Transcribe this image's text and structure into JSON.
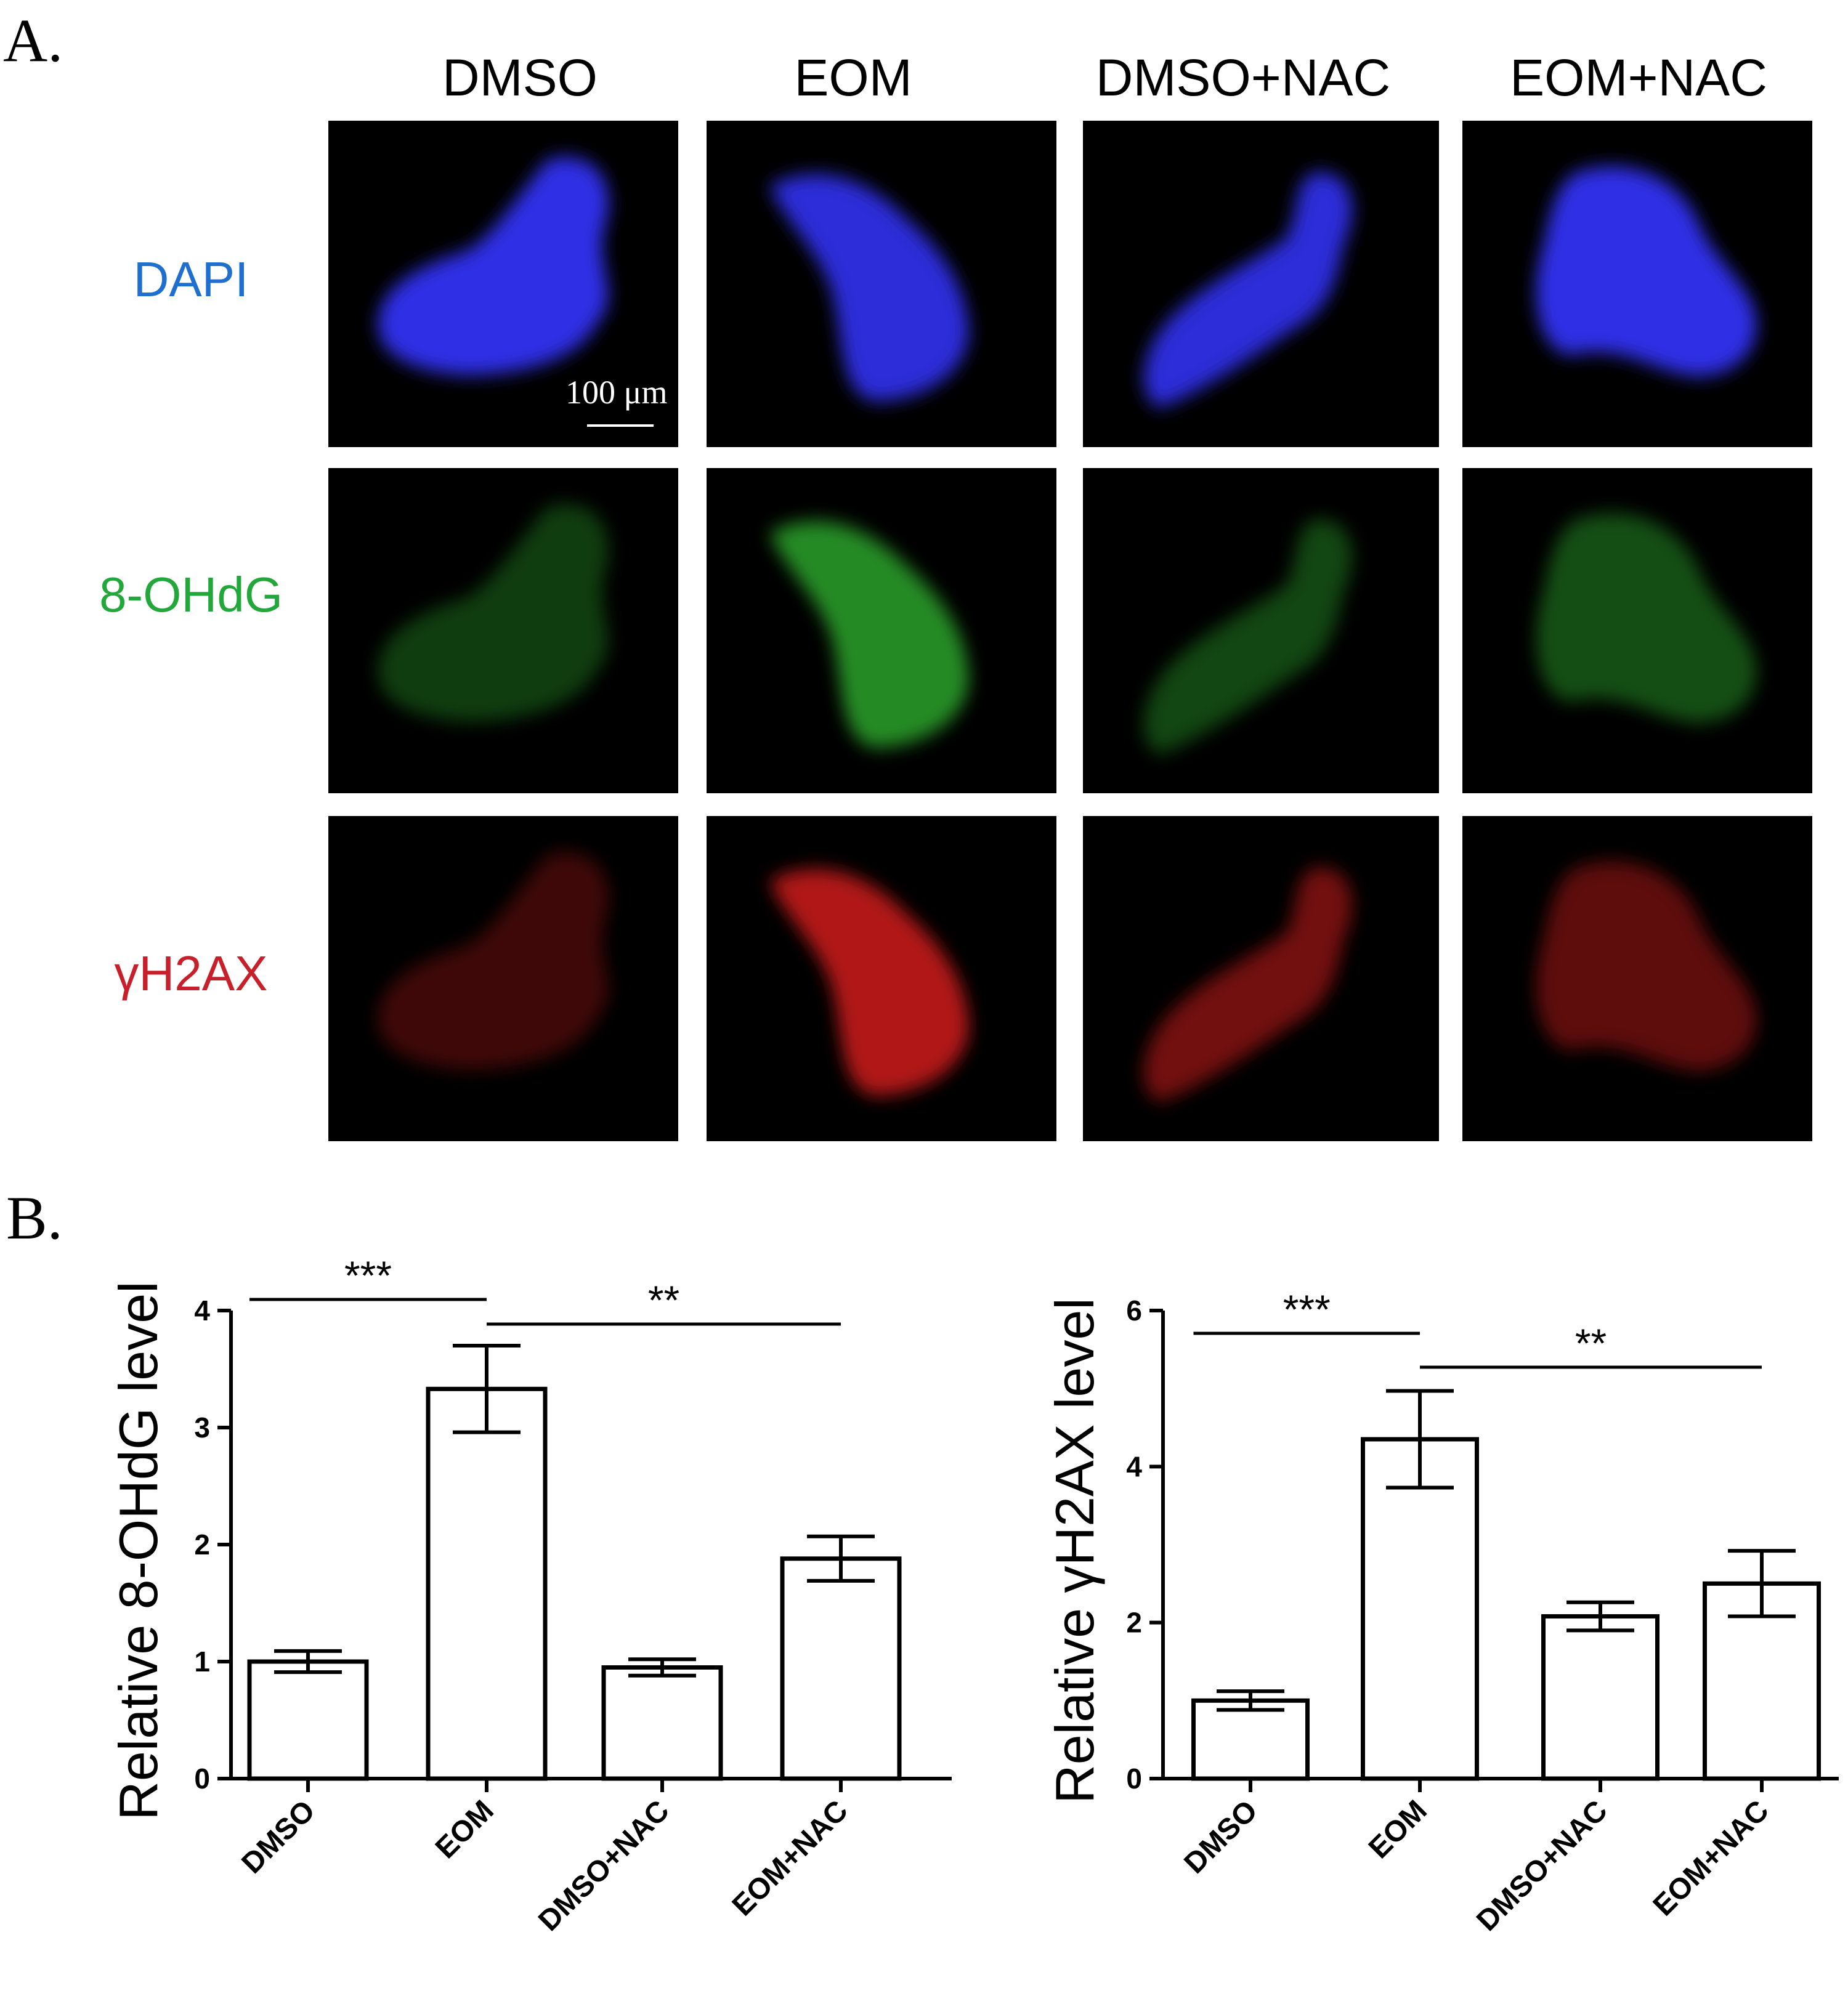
{
  "panel_a": {
    "letter": "A.",
    "columns": [
      "DMSO",
      "EOM",
      "DMSO+NAC",
      "EOM+NAC"
    ],
    "rows": [
      {
        "label": "DAPI",
        "color": "#1f6fd0",
        "stain_color": "#3434ff"
      },
      {
        "label": "8-OHdG",
        "color": "#22a83a",
        "stain_color": "#2fae2f"
      },
      {
        "label": "γH2AX",
        "color": "#c8202a",
        "stain_color": "#d01c1c"
      }
    ],
    "scale_bar": "100 μm",
    "intensity": [
      [
        0.9,
        0.85,
        0.85,
        0.9
      ],
      [
        0.35,
        0.8,
        0.4,
        0.45
      ],
      [
        0.3,
        0.85,
        0.55,
        0.45
      ]
    ]
  },
  "panel_b": {
    "letter": "B."
  },
  "chart_data": [
    {
      "type": "bar",
      "categories": [
        "DMSO",
        "EOM",
        "DMSO+NAC",
        "EOM+NAC"
      ],
      "values": [
        1.0,
        3.33,
        0.95,
        1.88
      ],
      "errors": [
        0.09,
        0.37,
        0.07,
        0.19
      ],
      "ylabel": "Relative 8-OHdG  level",
      "ylim": [
        0,
        4
      ],
      "yticks": [
        "0",
        "1",
        "2",
        "3",
        "4"
      ],
      "significance": [
        {
          "from": 0,
          "to": 1,
          "label": "***"
        },
        {
          "from": 1,
          "to": 3,
          "label": "**"
        }
      ]
    },
    {
      "type": "bar",
      "categories": [
        "DMSO",
        "EOM",
        "DMSO+NAC",
        "EOM+NAC"
      ],
      "values": [
        1.0,
        4.35,
        2.08,
        2.5
      ],
      "errors": [
        0.12,
        0.62,
        0.18,
        0.42
      ],
      "ylabel": "Relative  γH2AX  level",
      "ylim": [
        0,
        6
      ],
      "yticks": [
        "0",
        "2",
        "4",
        "6"
      ],
      "significance": [
        {
          "from": 0,
          "to": 1,
          "label": "***"
        },
        {
          "from": 1,
          "to": 3,
          "label": "**"
        }
      ]
    }
  ]
}
